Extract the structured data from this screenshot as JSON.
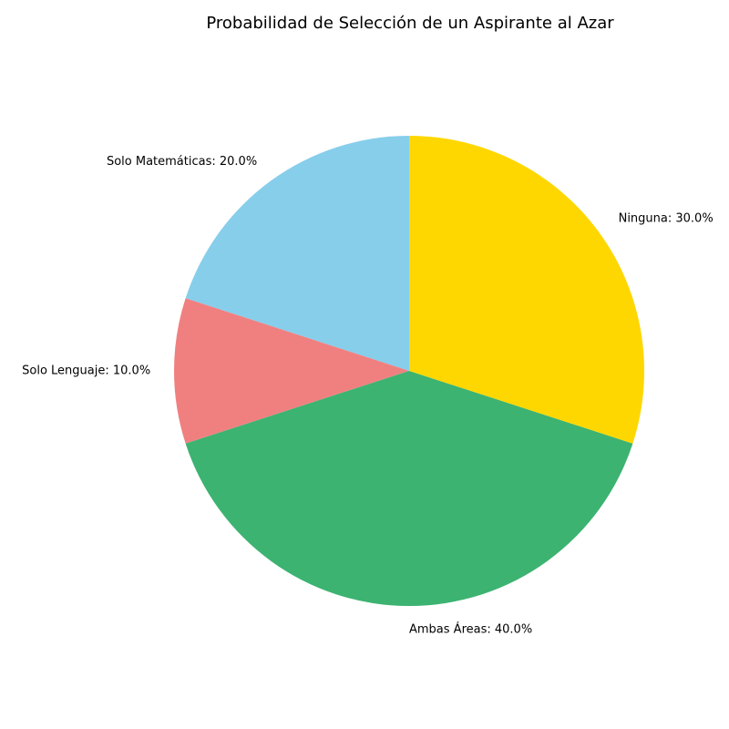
{
  "chart_data": {
    "type": "pie",
    "title": "Probabilidad de Selección de un Aspirante al Azar",
    "start_angle_deg": 90,
    "direction": "counterclockwise",
    "slices": [
      {
        "label": "Solo Matemáticas",
        "value": 20.0,
        "display": "Solo Matemáticas: 20.0%",
        "color": "#87CEEB"
      },
      {
        "label": "Solo Lenguaje",
        "value": 10.0,
        "display": "Solo Lenguaje: 10.0%",
        "color": "#F08080"
      },
      {
        "label": "Ambas Áreas",
        "value": 40.0,
        "display": "Ambas Áreas: 40.0%",
        "color": "#3CB371"
      },
      {
        "label": "Ninguna",
        "value": 30.0,
        "display": "Ninguna: 30.0%",
        "color": "#FFD700"
      }
    ]
  }
}
